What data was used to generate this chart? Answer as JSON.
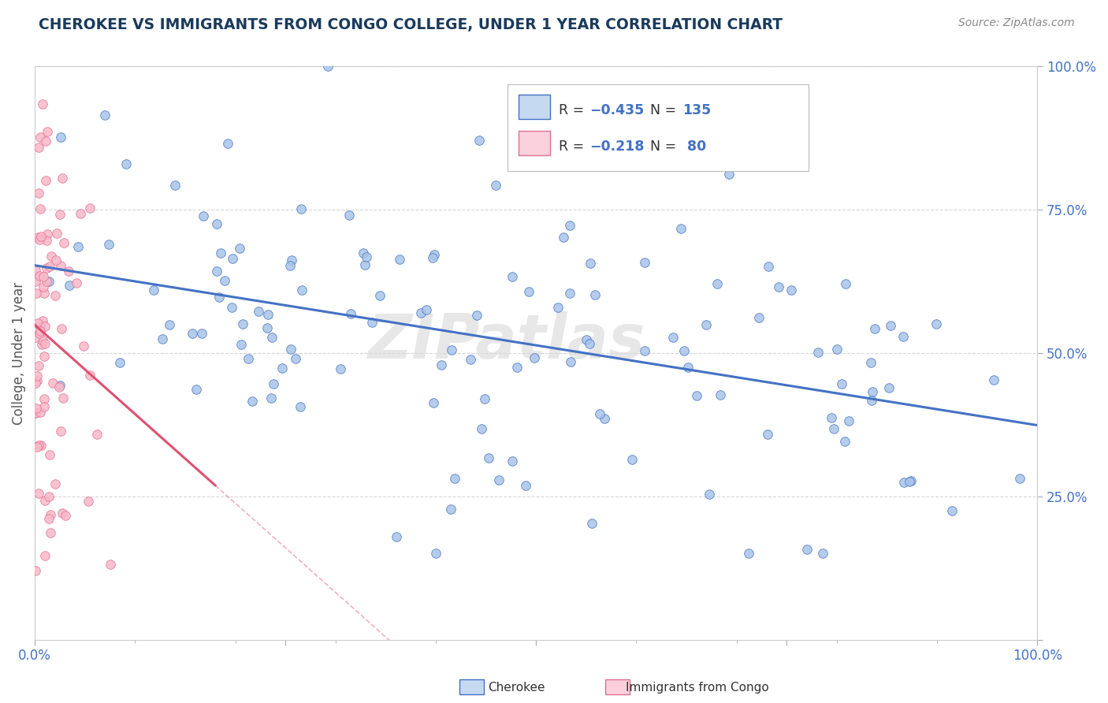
{
  "title": "CHEROKEE VS IMMIGRANTS FROM CONGO COLLEGE, UNDER 1 YEAR CORRELATION CHART",
  "source": "Source: ZipAtlas.com",
  "ylabel": "College, Under 1 year",
  "blue_R": -0.435,
  "blue_N": 135,
  "pink_R": -0.218,
  "pink_N": 80,
  "blue_dot_color": "#a8c4e8",
  "blue_dot_edge": "#4472c4",
  "pink_dot_color": "#f9b8c8",
  "pink_dot_edge": "#e07090",
  "blue_line_color": "#4472c4",
  "pink_line_color": "#e05070",
  "blue_legend_fill": "#c5d9f1",
  "pink_legend_fill": "#fad0dc",
  "watermark": "ZIPatlas",
  "watermark_color": "#d8d8d8",
  "background_color": "#ffffff",
  "grid_color": "#cccccc",
  "title_color": "#1a3a5c",
  "source_color": "#888888",
  "legend_text_color": "#4472c4",
  "axis_label_color": "#4472c4"
}
